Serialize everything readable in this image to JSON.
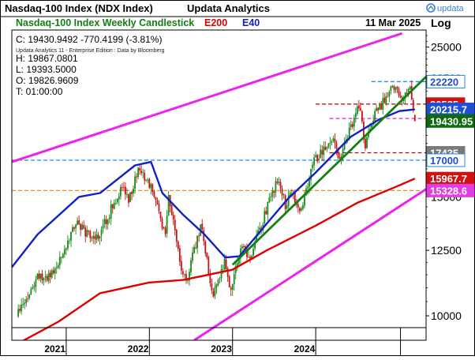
{
  "header": {
    "title": "Nasdaq-100 Index (NDX Index)",
    "app": "Updata Analytics",
    "brand": "updata",
    "scale_label": "Log"
  },
  "subheader": {
    "chart_name": "Nasdaq-100 Index Weekly Candlestick",
    "legend_e200": "E200",
    "legend_e40": "E40",
    "date": "11 Mar 2025"
  },
  "ohlc": {
    "close_line": "C: 19430.9492  -770.4199 (-3.81%)",
    "high_line": "H: 19867.0801",
    "low_line": "L: 19393.5000",
    "open_line": "O: 19826.9609",
    "time_line": "T: 01:00:00"
  },
  "watermark": "Updata Analytics 11 - Enterprise Edition : Data by Bloomberg",
  "colors": {
    "candle_up": "#1a8a1a",
    "candle_down": "#cc1111",
    "e200": "#e00000",
    "e40": "#1020c8",
    "channel": "#ee22ee",
    "trendline": "#128012",
    "label_green_bg": "#0d6b0d",
    "label_blue_bg": "#1e4fd6",
    "label_red_bg": "#d21010",
    "label_pink_bg": "#e23de2",
    "label_gray_bg": "#7a7a7a"
  },
  "chart_data": {
    "type": "candlestick",
    "title": "Nasdaq-100 Index Weekly Candlestick",
    "yscale": "log",
    "ylim": [
      9200,
      26500
    ],
    "y_ticks": [
      10000,
      12500,
      15000,
      17500,
      20000,
      22500,
      25000
    ],
    "x_range": [
      "2020-05-11",
      "2025-04-28"
    ],
    "x_labels": [
      "2021",
      "2022",
      "2023",
      "2024"
    ],
    "x_label_dates": [
      "2020-11-16",
      "2021-11-15",
      "2022-11-14",
      "2023-11-13"
    ],
    "year_starts": [
      "2021-01-04",
      "2022-01-03",
      "2023-01-02",
      "2024-01-01",
      "2025-01-06"
    ],
    "anchors": [
      [
        "2020-06-01",
        10050
      ],
      [
        "2020-09-01",
        11450
      ],
      [
        "2020-10-26",
        11400
      ],
      [
        "2021-02-15",
        13700
      ],
      [
        "2021-05-10",
        12850
      ],
      [
        "2021-09-06",
        15550
      ],
      [
        "2021-10-04",
        14800
      ],
      [
        "2021-11-22",
        16700
      ],
      [
        "2021-12-20",
        15900
      ],
      [
        "2022-01-10",
        15600
      ],
      [
        "2022-03-14",
        13100
      ],
      [
        "2022-03-28",
        15200
      ],
      [
        "2022-05-23",
        11600
      ],
      [
        "2022-06-13",
        11200
      ],
      [
        "2022-08-15",
        13600
      ],
      [
        "2022-10-10",
        10700
      ],
      [
        "2022-11-28",
        12000
      ],
      [
        "2022-12-26",
        10900
      ],
      [
        "2023-02-06",
        12700
      ],
      [
        "2023-03-13",
        12100
      ],
      [
        "2023-05-08",
        13600
      ],
      [
        "2023-06-19",
        15100
      ],
      [
        "2023-07-24",
        15900
      ],
      [
        "2023-08-21",
        14600
      ],
      [
        "2023-09-18",
        15300
      ],
      [
        "2023-10-23",
        14150
      ],
      [
        "2023-12-25",
        16900
      ],
      [
        "2024-03-11",
        18300
      ],
      [
        "2024-04-15",
        17050
      ],
      [
        "2024-07-08",
        20600
      ],
      [
        "2024-08-05",
        17900
      ],
      [
        "2024-09-23",
        20100
      ],
      [
        "2024-11-04",
        21000
      ],
      [
        "2024-12-09",
        21800
      ],
      [
        "2025-01-13",
        20700
      ],
      [
        "2025-02-17",
        22100
      ],
      [
        "2025-03-10",
        19430
      ]
    ],
    "last_bar": {
      "open": 19826.9609,
      "high": 19867.0801,
      "low": 19393.5,
      "close": 19430.9492,
      "change": -770.4199,
      "change_pct": -3.81
    },
    "indicators": {
      "e200": {
        "name": "E200",
        "last": 15967.7,
        "points": [
          [
            "2020-05-11",
            9000
          ],
          [
            "2020-12-01",
            9800
          ],
          [
            "2021-06-01",
            10800
          ],
          [
            "2022-01-01",
            11200
          ],
          [
            "2022-06-01",
            11300
          ],
          [
            "2023-01-01",
            11700
          ],
          [
            "2023-06-01",
            12500
          ],
          [
            "2024-01-01",
            13600
          ],
          [
            "2024-07-01",
            14700
          ],
          [
            "2025-01-01",
            15600
          ],
          [
            "2025-03-10",
            15967.7
          ]
        ]
      },
      "e40": {
        "name": "E40",
        "last": 20215.7,
        "points": [
          [
            "2020-05-11",
            11800
          ],
          [
            "2020-09-01",
            13200
          ],
          [
            "2021-03-01",
            15000
          ],
          [
            "2021-06-01",
            15200
          ],
          [
            "2021-11-01",
            16700
          ],
          [
            "2022-01-10",
            16900
          ],
          [
            "2022-03-01",
            15200
          ],
          [
            "2022-06-01",
            14100
          ],
          [
            "2022-09-01",
            13200
          ],
          [
            "2022-12-01",
            12200
          ],
          [
            "2023-02-01",
            12250
          ],
          [
            "2023-06-01",
            13700
          ],
          [
            "2023-09-01",
            14900
          ],
          [
            "2024-01-01",
            16300
          ],
          [
            "2024-06-01",
            18400
          ],
          [
            "2024-10-01",
            19500
          ],
          [
            "2025-01-01",
            20100
          ],
          [
            "2025-03-10",
            20215.7
          ]
        ]
      }
    },
    "channel": [
      {
        "label": "upper",
        "from": [
          "2020-05-11",
          16900
        ],
        "to": [
          "2025-01-13",
          26200
        ]
      },
      {
        "label": "lower",
        "from": [
          "2022-07-18",
          9200
        ],
        "to": [
          "2025-04-28",
          15400
        ]
      }
    ],
    "trendline": {
      "from": [
        "2023-01-02",
        11900
      ],
      "to": [
        "2025-04-28",
        22600
      ]
    },
    "horizontal_levels": [
      {
        "value": 22220,
        "label": "22220",
        "color": "#1e88e5",
        "style": "dashed",
        "from": "2024-09-01"
      },
      {
        "value": 20585,
        "label": "20585",
        "color": "#d21010",
        "style": "dashed",
        "from": "2024-01-01"
      },
      {
        "value": 19600,
        "label": "",
        "color": "#e23de2",
        "style": "dashed",
        "from": "2024-03-01"
      },
      {
        "value": 17435,
        "label": "17435",
        "color": "#8b1a1a",
        "style": "dashed",
        "from": "2024-03-01"
      },
      {
        "value": 17000,
        "label": "17000",
        "color": "#1e88e5",
        "style": "dashed",
        "from": "2020-05-11"
      },
      {
        "value": 15328.6,
        "label": "15328.6",
        "color": "#f08a1a",
        "style": "dashed",
        "from": "2020-05-11"
      }
    ],
    "value_labels": [
      {
        "text": "22220",
        "value": 22220,
        "style": "light-blue"
      },
      {
        "text": "20585",
        "value": 20585,
        "style": "red"
      },
      {
        "text": "20215.7",
        "value": 20215.7,
        "style": "blue"
      },
      {
        "text": "19430.95",
        "value": 19430.95,
        "style": "green"
      },
      {
        "text": "17435",
        "value": 17435,
        "style": "gray"
      },
      {
        "text": "17000",
        "value": 17000,
        "style": "light-blue"
      },
      {
        "text": "15967.7",
        "value": 15967.7,
        "style": "red"
      },
      {
        "text": "15328.6",
        "value": 15328.6,
        "style": "pink"
      }
    ]
  }
}
